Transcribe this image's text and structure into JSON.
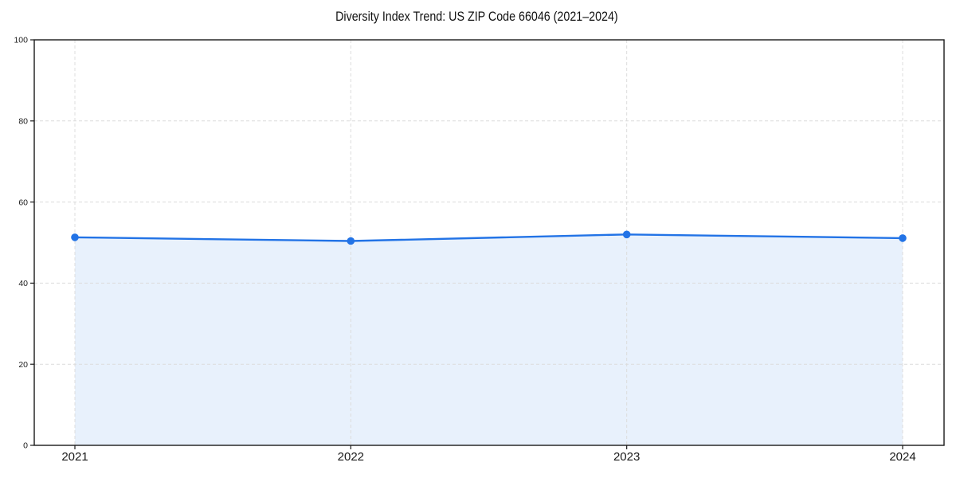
{
  "figure": {
    "title": "Diversity Index Trend: US ZIP Code 66046 (2021–2024)"
  },
  "chart_data": {
    "type": "line",
    "area_fill": true,
    "categories": [
      "2021",
      "2022",
      "2023",
      "2024"
    ],
    "series": [
      {
        "name": "Diversity Index",
        "values": [
          51.3,
          50.4,
          52.0,
          51.1
        ]
      }
    ],
    "title": "Diversity Index Trend: US ZIP Code 66046 (2021–2024)",
    "xlabel": "",
    "ylabel": "",
    "ylim": [
      0,
      100
    ],
    "yticks": [
      0,
      20,
      40,
      60,
      80,
      100
    ],
    "grid": "dashed-both-axes",
    "legend_position": "none",
    "colors": {
      "line": "#2273e6",
      "marker": "#2273e6",
      "fill": "rgba(34,115,230,0.10)",
      "grid": "#dcdcdc",
      "spine": "#1a1a1a",
      "tick_text": "#1a1a1a",
      "background": "#ffffff"
    }
  }
}
